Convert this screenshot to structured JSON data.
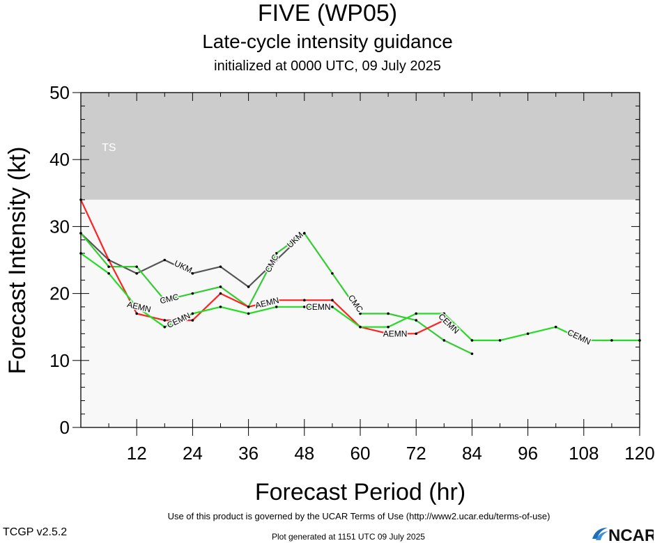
{
  "header": {
    "title": "FIVE (WP05)",
    "subtitle": "Late-cycle intensity guidance",
    "init_line": "initialized at 0000 UTC, 09 July 2025"
  },
  "footer": {
    "terms": "Use of this product is governed by the UCAR Terms of Use (http://www2.ucar.edu/terms-of-use)",
    "version": "TCGP v2.5.2",
    "generated": "Plot generated at 1151 UTC   09 July 2025",
    "logo_text": "NCAR"
  },
  "chart_data": {
    "type": "line",
    "xlabel": "Forecast Period (hr)",
    "ylabel": "Forecast Intensity (kt)",
    "xlim": [
      0,
      120
    ],
    "ylim": [
      0,
      50
    ],
    "xticks": [
      12,
      24,
      36,
      48,
      60,
      72,
      84,
      96,
      108,
      120
    ],
    "yticks": [
      0,
      10,
      20,
      30,
      40,
      50
    ],
    "bands": [
      {
        "label": "TS",
        "from": 34,
        "to": 50,
        "color": "#cccccc"
      },
      {
        "label": "",
        "from": 0,
        "to": 34,
        "color": "#f8f8f8"
      }
    ],
    "series": [
      {
        "name": "UKM",
        "color": "#555555",
        "x": [
          0,
          6,
          12,
          18,
          24,
          30,
          36,
          42,
          48
        ],
        "y": [
          29,
          25,
          23,
          25,
          23,
          24,
          21,
          25,
          29
        ],
        "label_at": [
          {
            "x": 22,
            "y": 24
          },
          {
            "x": 46,
            "y": 28
          }
        ]
      },
      {
        "name": "CMC",
        "color": "#33cc33",
        "x": [
          0,
          6,
          12,
          18,
          24,
          30,
          36,
          42,
          48,
          54,
          60,
          66,
          72,
          78,
          84
        ],
        "y": [
          29,
          24,
          24,
          19,
          20,
          21,
          18,
          26,
          29,
          23,
          17,
          17,
          16,
          13,
          11
        ],
        "label_at": [
          {
            "x": 19,
            "y": 19.2
          },
          {
            "x": 41,
            "y": 24.5
          },
          {
            "x": 59,
            "y": 18.5
          }
        ]
      },
      {
        "name": "AEMN",
        "color": "#ff2222",
        "x": [
          0,
          6,
          12,
          18,
          24,
          30,
          36,
          42,
          48,
          54,
          60,
          66,
          72,
          78
        ],
        "y": [
          34,
          25,
          17,
          16,
          16,
          20,
          18,
          19,
          19,
          19,
          15,
          14,
          14,
          16
        ],
        "label_at": [
          {
            "x": 12.5,
            "y": 18
          },
          {
            "x": 40,
            "y": 18.6
          },
          {
            "x": 67.5,
            "y": 14
          }
        ]
      },
      {
        "name": "CEMN",
        "color": "#22dd22",
        "x": [
          0,
          6,
          12,
          18,
          24,
          30,
          36,
          42,
          48,
          54,
          60,
          66,
          72,
          78,
          84,
          90,
          96,
          102,
          108,
          114,
          120
        ],
        "y": [
          26,
          23,
          18,
          15,
          17,
          18,
          17,
          18,
          18,
          18,
          15,
          15,
          17,
          17,
          13,
          13,
          14,
          15,
          13,
          13,
          13
        ],
        "label_at": [
          {
            "x": 21,
            "y": 16
          },
          {
            "x": 51,
            "y": 18
          },
          {
            "x": 79,
            "y": 15.5
          },
          {
            "x": 107,
            "y": 13.5
          }
        ]
      }
    ]
  }
}
